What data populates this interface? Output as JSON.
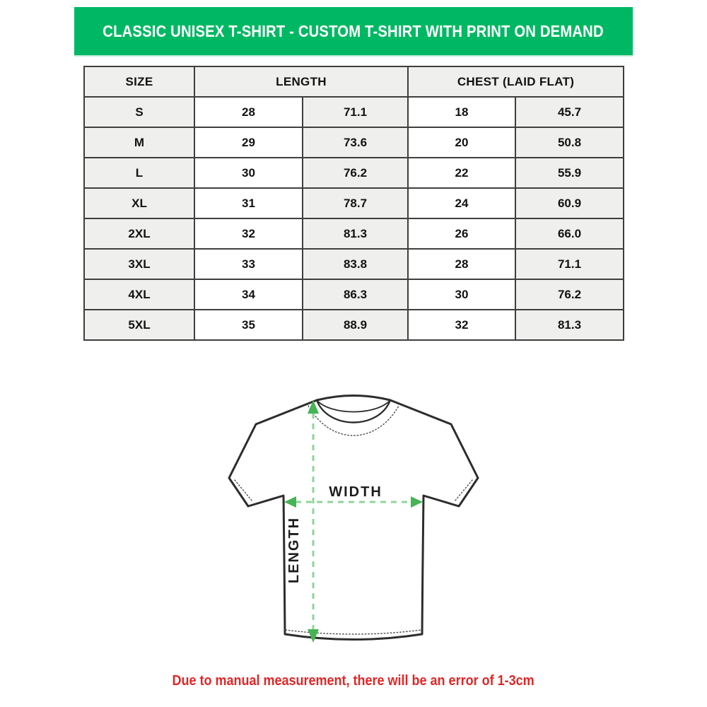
{
  "banner": {
    "title": "CLASSIC UNISEX T-SHIRT - CUSTOM T-SHIRT WITH PRINT ON DEMAND"
  },
  "size_table": {
    "headers": {
      "size": "SIZE",
      "length": "LENGTH",
      "chest": "CHEST (LAID FLAT)"
    },
    "rows": [
      {
        "size": "S",
        "length_in": "28",
        "length_cm": "71.1",
        "chest_in": "18",
        "chest_cm": "45.7"
      },
      {
        "size": "M",
        "length_in": "29",
        "length_cm": "73.6",
        "chest_in": "20",
        "chest_cm": "50.8"
      },
      {
        "size": "L",
        "length_in": "30",
        "length_cm": "76.2",
        "chest_in": "22",
        "chest_cm": "55.9"
      },
      {
        "size": "XL",
        "length_in": "31",
        "length_cm": "78.7",
        "chest_in": "24",
        "chest_cm": "60.9"
      },
      {
        "size": "2XL",
        "length_in": "32",
        "length_cm": "81.3",
        "chest_in": "26",
        "chest_cm": "66.0"
      },
      {
        "size": "3XL",
        "length_in": "33",
        "length_cm": "83.8",
        "chest_in": "28",
        "chest_cm": "71.1"
      },
      {
        "size": "4XL",
        "length_in": "34",
        "length_cm": "86.3",
        "chest_in": "30",
        "chest_cm": "76.2"
      },
      {
        "size": "5XL",
        "length_in": "35",
        "length_cm": "88.9",
        "chest_in": "32",
        "chest_cm": "81.3"
      }
    ]
  },
  "diagram": {
    "width_label": "WIDTH",
    "length_label": "LENGTH"
  },
  "footer": {
    "note": "Due to manual measurement, there will be an error of 1-3cm"
  },
  "colors": {
    "banner_green": "#00b863",
    "banner_edge": "#bce9d2",
    "cell_gray": "#efefed",
    "table_border": "#3e3e3e",
    "note_red": "#e12626",
    "arrow_dash_green": "#8fd59b",
    "arrow_head_green": "#46b455",
    "outline_ink": "#2d2d2d"
  },
  "chart_data": {
    "type": "table",
    "title": "CLASSIC UNISEX T-SHIRT - CUSTOM T-SHIRT WITH PRINT ON DEMAND",
    "columns": [
      "SIZE",
      "LENGTH (in)",
      "LENGTH (cm)",
      "CHEST LAID FLAT (in)",
      "CHEST LAID FLAT (cm)"
    ],
    "rows": [
      [
        "S",
        28,
        71.1,
        18,
        45.7
      ],
      [
        "M",
        29,
        73.6,
        20,
        50.8
      ],
      [
        "L",
        30,
        76.2,
        22,
        55.9
      ],
      [
        "XL",
        31,
        78.7,
        24,
        60.9
      ],
      [
        "2XL",
        32,
        81.3,
        26,
        66.0
      ],
      [
        "3XL",
        33,
        83.8,
        28,
        71.1
      ],
      [
        "4XL",
        34,
        86.3,
        30,
        76.2
      ],
      [
        "5XL",
        35,
        88.9,
        32,
        81.3
      ]
    ],
    "annotations": [
      "WIDTH",
      "LENGTH",
      "Due to manual measurement, there will be an error of 1-3cm"
    ]
  }
}
